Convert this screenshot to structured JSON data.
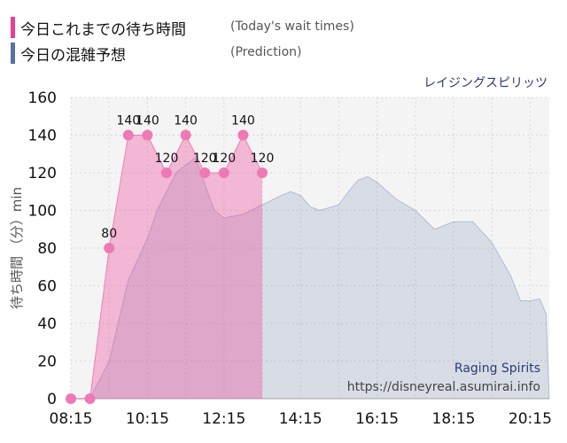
{
  "legend": {
    "actual": {
      "label": "今日これまでの待ち時間",
      "sub": "(Today's wait times)",
      "color": "#ec3d96"
    },
    "prediction": {
      "label": "今日の混雑予想",
      "sub": "(Prediction)",
      "color": "#5a71a3"
    }
  },
  "attraction_name": "レイジングスピリッツ",
  "watermark": {
    "name": "Raging Spirits",
    "url": "https://disneyreal.asumirai.info"
  },
  "chart_data": {
    "type": "area",
    "ylabel": "待ち時間 （分）min",
    "ylim": [
      0,
      160
    ],
    "yticks": [
      0,
      20,
      40,
      60,
      80,
      100,
      120,
      140,
      160
    ],
    "xlim": [
      "08:15",
      "20:45"
    ],
    "xticks": [
      "08:15",
      "10:15",
      "12:15",
      "14:15",
      "16:15",
      "18:15",
      "20:15"
    ],
    "grid": true,
    "series": [
      {
        "name": "今日これまでの待ち時間",
        "color": "#ec3d96",
        "points": [
          [
            "08:15",
            0
          ],
          [
            "08:45",
            0
          ],
          [
            "09:15",
            80
          ],
          [
            "09:45",
            140
          ],
          [
            "10:15",
            140
          ],
          [
            "10:45",
            120
          ],
          [
            "11:15",
            140
          ],
          [
            "11:45",
            120
          ],
          [
            "12:15",
            120
          ],
          [
            "12:45",
            140
          ],
          [
            "13:15",
            120
          ]
        ],
        "data_labels": [
          null,
          null,
          80,
          140,
          140,
          120,
          140,
          120,
          120,
          140,
          120
        ]
      },
      {
        "name": "今日の混雑予想",
        "color": "#5a71a3",
        "points": [
          [
            "08:15",
            0
          ],
          [
            "08:45",
            0
          ],
          [
            "09:15",
            20
          ],
          [
            "09:45",
            63
          ],
          [
            "10:15",
            85
          ],
          [
            "10:30",
            100
          ],
          [
            "11:00",
            120
          ],
          [
            "11:30",
            128
          ],
          [
            "12:00",
            100
          ],
          [
            "12:15",
            96
          ],
          [
            "12:45",
            98
          ],
          [
            "13:15",
            103
          ],
          [
            "13:45",
            108
          ],
          [
            "14:00",
            110
          ],
          [
            "14:15",
            108
          ],
          [
            "14:30",
            102
          ],
          [
            "14:45",
            100
          ],
          [
            "15:15",
            103
          ],
          [
            "15:30",
            110
          ],
          [
            "15:45",
            116
          ],
          [
            "16:00",
            118
          ],
          [
            "16:15",
            115
          ],
          [
            "16:45",
            106
          ],
          [
            "17:15",
            100
          ],
          [
            "17:45",
            90
          ],
          [
            "18:15",
            94
          ],
          [
            "18:45",
            94
          ],
          [
            "19:15",
            83
          ],
          [
            "19:45",
            65
          ],
          [
            "20:00",
            52
          ],
          [
            "20:15",
            52
          ],
          [
            "20:30",
            53
          ],
          [
            "20:40",
            45
          ],
          [
            "20:45",
            0
          ]
        ]
      }
    ]
  }
}
